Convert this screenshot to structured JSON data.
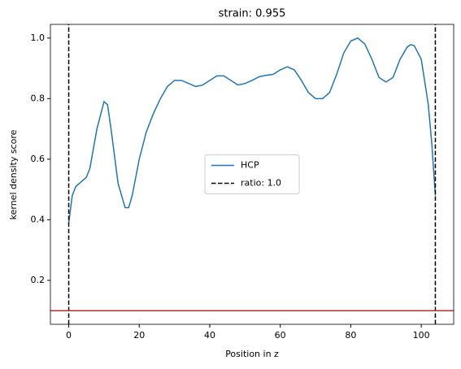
{
  "chart_data": {
    "type": "line",
    "title": "strain: 0.955",
    "xlabel": "Position in z",
    "ylabel": "kernel density score",
    "xlim": [
      -5.2,
      109.2
    ],
    "ylim": [
      0.055,
      1.045
    ],
    "xticks": [
      0,
      20,
      40,
      60,
      80,
      100
    ],
    "yticks": [
      0.2,
      0.4,
      0.6,
      0.8,
      {
        "value": 1,
        "label": "1.0"
      }
    ],
    "legend_loc": "center",
    "series": [
      {
        "name": "HCP",
        "color": "#1f77b4",
        "x": [
          0,
          1,
          2,
          4,
          5,
          6,
          8,
          10,
          11,
          12,
          14,
          16,
          17,
          18,
          20,
          22,
          24,
          26,
          28,
          30,
          32,
          34,
          36,
          38,
          40,
          42,
          44,
          46,
          48,
          50,
          52,
          54,
          56,
          58,
          60,
          62,
          64,
          66,
          68,
          70,
          72,
          74,
          76,
          78,
          80,
          82,
          84,
          86,
          88,
          90,
          92,
          94,
          96,
          97,
          98,
          100,
          102,
          103,
          104
        ],
        "values": [
          0.39,
          0.48,
          0.51,
          0.53,
          0.54,
          0.57,
          0.7,
          0.79,
          0.78,
          0.7,
          0.52,
          0.44,
          0.44,
          0.48,
          0.6,
          0.69,
          0.75,
          0.8,
          0.84,
          0.86,
          0.86,
          0.85,
          0.84,
          0.845,
          0.86,
          0.875,
          0.875,
          0.86,
          0.845,
          0.85,
          0.86,
          0.872,
          0.877,
          0.88,
          0.895,
          0.905,
          0.895,
          0.86,
          0.82,
          0.8,
          0.8,
          0.82,
          0.88,
          0.95,
          0.99,
          1.0,
          0.98,
          0.93,
          0.87,
          0.855,
          0.87,
          0.93,
          0.97,
          0.978,
          0.975,
          0.93,
          0.78,
          0.65,
          0.48
        ]
      }
    ],
    "vlines": {
      "name": "ratio: 1.0",
      "color": "#000000",
      "values": [
        0,
        104
      ]
    },
    "hline": {
      "value": 0.1,
      "color": "#d62728"
    }
  }
}
